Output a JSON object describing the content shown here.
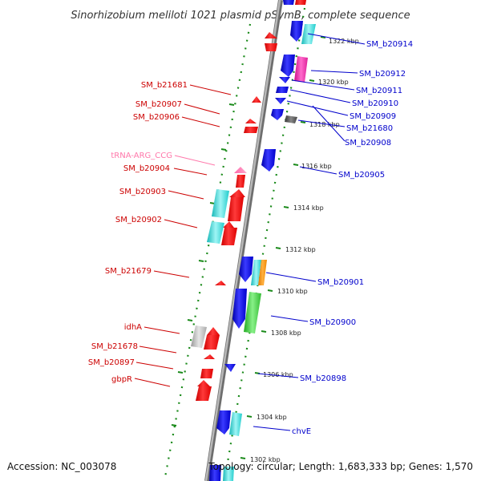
{
  "title": "Sinorhizobium meliloti 1021 plasmid pSymB, complete sequence",
  "footer": {
    "accession": "Accession: NC_003078",
    "topology": "Topology: circular; Length: 1,683,333 bp; Genes: 1,570"
  },
  "colors": {
    "backbone": "#8c8c8c",
    "tick_dots": "#1a8a1a",
    "forward_label": "#0000cc",
    "reverse_label": "#cc0000",
    "rna_label": "#ff77aa"
  },
  "ticks": [
    "1322 kbp",
    "1320 kbp",
    "1318 kbp",
    "1316 kbp",
    "1314 kbp",
    "1312 kbp",
    "1310 kbp",
    "1308 kbp",
    "1306 kbp",
    "1304 kbp",
    "1302 kbp"
  ],
  "labels_right": [
    "SM_b20914",
    "SM_b20912",
    "SM_b20911",
    "SM_b20910",
    "SM_b20909",
    "SM_b21680",
    "SM_b20908",
    "SM_b20905",
    "SM_b20901",
    "SM_b20900",
    "SM_b20898",
    "chvE"
  ],
  "labels_left": [
    "SM_b21681",
    "SM_b20907",
    "SM_b20906",
    "tRNA-ARG_CCG",
    "SM_b20904",
    "SM_b20903",
    "SM_b20902",
    "SM_b21679",
    "idhA",
    "SM_b21678",
    "SM_b20897",
    "gbpR"
  ]
}
